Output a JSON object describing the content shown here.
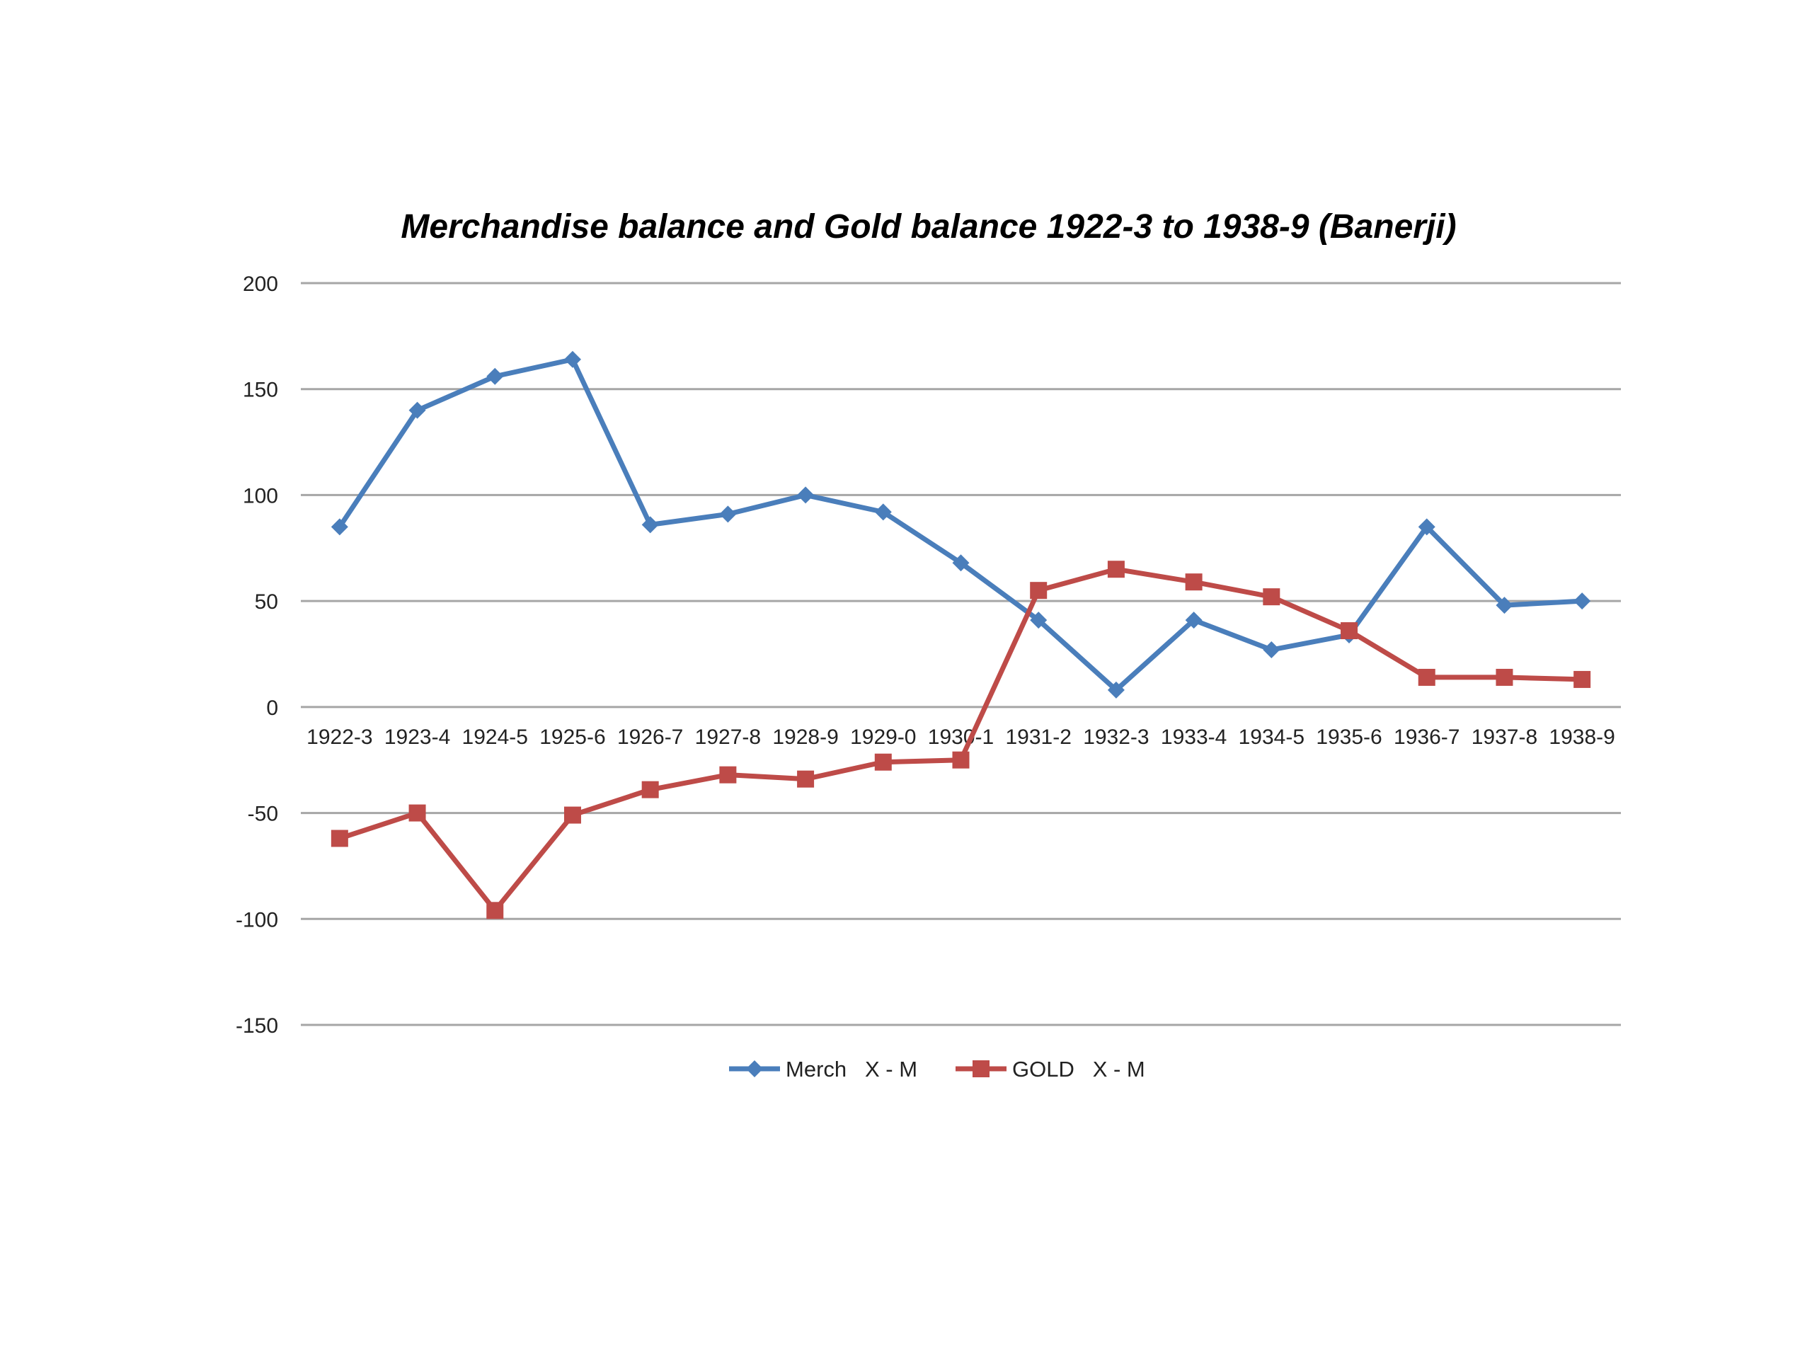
{
  "chart_data": {
    "type": "line",
    "title": "Merchandise balance and Gold balance 1922-3 to 1938-9  (Banerji)",
    "xlabel": "",
    "ylabel": "",
    "ylim": [
      -150,
      200
    ],
    "yticks": [
      200,
      150,
      100,
      50,
      0,
      -50,
      -100,
      -150
    ],
    "grid": true,
    "legend_position": "bottom",
    "categories": [
      "1922-3",
      "1923-4",
      "1924-5",
      "1925-6",
      "1926-7",
      "1927-8",
      "1928-9",
      "1929-0",
      "1930-1",
      "1931-2",
      "1932-3",
      "1933-4",
      "1934-5",
      "1935-6",
      "1936-7",
      "1937-8",
      "1938-9"
    ],
    "series": [
      {
        "name": "Merch   X - M",
        "color": "#4a7ebb",
        "marker": "diamond",
        "values": [
          85,
          140,
          156,
          164,
          86,
          91,
          100,
          92,
          68,
          41,
          8,
          41,
          27,
          34,
          85,
          48,
          50
        ]
      },
      {
        "name": "GOLD   X - M",
        "color": "#be4b48",
        "marker": "square",
        "values": [
          -62,
          -50,
          -96,
          -51,
          -39,
          -32,
          -34,
          -26,
          -25,
          55,
          65,
          59,
          52,
          36,
          14,
          14,
          13
        ]
      }
    ]
  }
}
